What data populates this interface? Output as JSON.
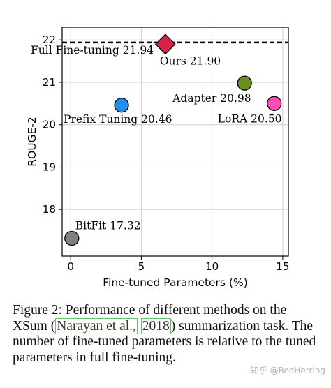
{
  "chart_data": {
    "type": "scatter",
    "xlabel": "Fine-tuned Parameters (%)",
    "ylabel": "ROUGE-2",
    "xlim": [
      -0.6,
      15.4
    ],
    "ylim": [
      16.9,
      22.3
    ],
    "xticks": [
      0,
      5,
      10,
      15
    ],
    "yticks": [
      18,
      19,
      20,
      21,
      22
    ],
    "grid": true,
    "points": [
      {
        "name": "BitFit",
        "label": "BitFit 17.32",
        "x": 0.08,
        "y": 17.32,
        "color": "#808080",
        "marker": "circle"
      },
      {
        "name": "Prefix Tuning",
        "label": "Prefix Tuning 20.46",
        "x": 3.6,
        "y": 20.46,
        "color": "#1f8ef1",
        "marker": "circle"
      },
      {
        "name": "Ours",
        "label": "Ours 21.90",
        "x": 6.7,
        "y": 21.9,
        "color": "#d62246",
        "marker": "diamond"
      },
      {
        "name": "Adapter",
        "label": "Adapter 20.98",
        "x": 12.3,
        "y": 20.98,
        "color": "#6b8e23",
        "marker": "circle"
      },
      {
        "name": "LoRA",
        "label": "LoRA 20.50",
        "x": 14.4,
        "y": 20.5,
        "color": "#ff4fb4",
        "marker": "circle"
      }
    ],
    "reference_line": {
      "label": "Full Fine-tuning 21.94",
      "y": 21.94,
      "style": "dashed"
    }
  },
  "caption": {
    "prefix": "Figure 2: Performance of different methods on the XSum (",
    "cite_author": "Narayan et al.,",
    "cite_year": "2018",
    "suffix": ") summarization task. The number of fine-tuned parameters is relative to the tuned parameters in full fine-tuning."
  },
  "watermark": "知乎 @RedHerring"
}
